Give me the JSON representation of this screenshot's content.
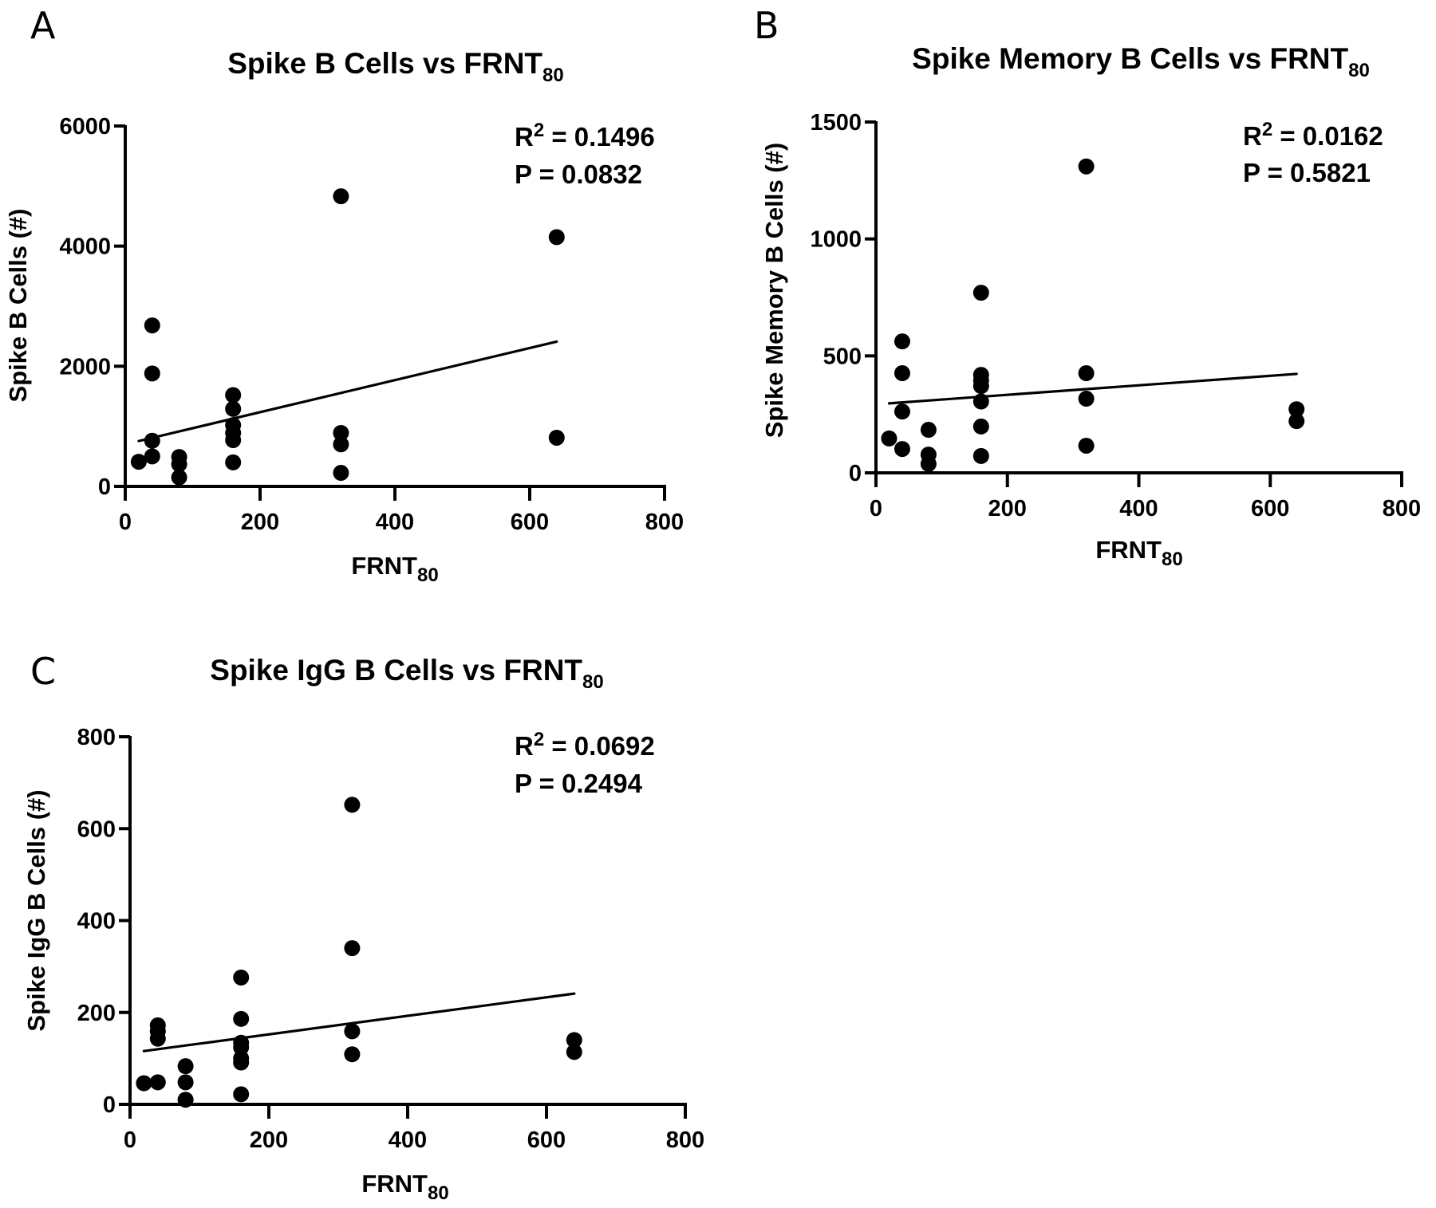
{
  "chart_data": [
    {
      "panel": "A",
      "type": "scatter",
      "title": "Spike B Cells vs FRNT",
      "title_subscript": "80",
      "xlabel": "FRNT",
      "xlabel_subscript": "80",
      "ylabel": "Spike B Cells (#)",
      "xlim": [
        0,
        800
      ],
      "ylim": [
        0,
        6000
      ],
      "xticks": [
        "0",
        "200",
        "400",
        "600",
        "800"
      ],
      "yticks": [
        "0",
        "2000",
        "4000",
        "6000"
      ],
      "grid": false,
      "points": [
        {
          "x": 20,
          "y": 410
        },
        {
          "x": 40,
          "y": 500
        },
        {
          "x": 40,
          "y": 760
        },
        {
          "x": 40,
          "y": 1880
        },
        {
          "x": 40,
          "y": 2680
        },
        {
          "x": 80,
          "y": 150
        },
        {
          "x": 80,
          "y": 370
        },
        {
          "x": 80,
          "y": 490
        },
        {
          "x": 160,
          "y": 400
        },
        {
          "x": 160,
          "y": 770
        },
        {
          "x": 160,
          "y": 890
        },
        {
          "x": 160,
          "y": 1020
        },
        {
          "x": 160,
          "y": 1290
        },
        {
          "x": 160,
          "y": 1520
        },
        {
          "x": 320,
          "y": 225
        },
        {
          "x": 320,
          "y": 700
        },
        {
          "x": 320,
          "y": 890
        },
        {
          "x": 320,
          "y": 4830
        },
        {
          "x": 640,
          "y": 810
        },
        {
          "x": 640,
          "y": 4150
        }
      ],
      "regression_line": {
        "x": [
          20,
          640
        ],
        "y": [
          755,
          2410
        ]
      },
      "stats": {
        "r2_label": "R",
        "r2_sup": "2",
        "r2_value": " = 0.1496",
        "p_text": "P = 0.0832"
      }
    },
    {
      "panel": "B",
      "type": "scatter",
      "title": "Spike Memory B Cells vs FRNT",
      "title_subscript": "80",
      "xlabel": "FRNT",
      "xlabel_subscript": "80",
      "ylabel": "Spike Memory B Cells (#)",
      "xlim": [
        0,
        800
      ],
      "ylim": [
        0,
        1500
      ],
      "xticks": [
        "0",
        "200",
        "400",
        "600",
        "800"
      ],
      "yticks": [
        "0",
        "500",
        "1000",
        "1500"
      ],
      "grid": false,
      "points": [
        {
          "x": 20,
          "y": 147
        },
        {
          "x": 40,
          "y": 102
        },
        {
          "x": 40,
          "y": 262
        },
        {
          "x": 40,
          "y": 426
        },
        {
          "x": 40,
          "y": 562
        },
        {
          "x": 80,
          "y": 38
        },
        {
          "x": 80,
          "y": 78
        },
        {
          "x": 80,
          "y": 184
        },
        {
          "x": 160,
          "y": 72
        },
        {
          "x": 160,
          "y": 198
        },
        {
          "x": 160,
          "y": 305
        },
        {
          "x": 160,
          "y": 371
        },
        {
          "x": 160,
          "y": 395
        },
        {
          "x": 160,
          "y": 419
        },
        {
          "x": 160,
          "y": 770
        },
        {
          "x": 320,
          "y": 116
        },
        {
          "x": 320,
          "y": 317
        },
        {
          "x": 320,
          "y": 426
        },
        {
          "x": 320,
          "y": 1310
        },
        {
          "x": 640,
          "y": 221
        },
        {
          "x": 640,
          "y": 272
        }
      ],
      "regression_line": {
        "x": [
          20,
          640
        ],
        "y": [
          297,
          423
        ]
      },
      "stats": {
        "r2_label": "R",
        "r2_sup": "2",
        "r2_value": " = 0.0162",
        "p_text": "P = 0.5821"
      }
    },
    {
      "panel": "C",
      "type": "scatter",
      "title": "Spike IgG B Cells vs FRNT",
      "title_subscript": "80",
      "xlabel": "FRNT",
      "xlabel_subscript": "80",
      "ylabel": "Spike IgG B Cells (#)",
      "xlim": [
        0,
        800
      ],
      "ylim": [
        0,
        800
      ],
      "xticks": [
        "0",
        "200",
        "400",
        "600",
        "800"
      ],
      "yticks": [
        "0",
        "200",
        "400",
        "600",
        "800"
      ],
      "grid": false,
      "points": [
        {
          "x": 20,
          "y": 46
        },
        {
          "x": 40,
          "y": 48
        },
        {
          "x": 40,
          "y": 143
        },
        {
          "x": 40,
          "y": 159
        },
        {
          "x": 40,
          "y": 172
        },
        {
          "x": 80,
          "y": 10
        },
        {
          "x": 80,
          "y": 48
        },
        {
          "x": 80,
          "y": 83
        },
        {
          "x": 160,
          "y": 22
        },
        {
          "x": 160,
          "y": 91
        },
        {
          "x": 160,
          "y": 100
        },
        {
          "x": 160,
          "y": 124
        },
        {
          "x": 160,
          "y": 134
        },
        {
          "x": 160,
          "y": 186
        },
        {
          "x": 160,
          "y": 276
        },
        {
          "x": 320,
          "y": 109
        },
        {
          "x": 320,
          "y": 159
        },
        {
          "x": 320,
          "y": 340
        },
        {
          "x": 320,
          "y": 652
        },
        {
          "x": 640,
          "y": 114
        },
        {
          "x": 640,
          "y": 140
        }
      ],
      "regression_line": {
        "x": [
          20,
          640
        ],
        "y": [
          116,
          241
        ]
      },
      "stats": {
        "r2_label": "R",
        "r2_sup": "2",
        "r2_value": " = 0.0692",
        "p_text": "P = 0.2494"
      }
    }
  ],
  "colors": {
    "ink": "#000000",
    "background": "#ffffff"
  }
}
